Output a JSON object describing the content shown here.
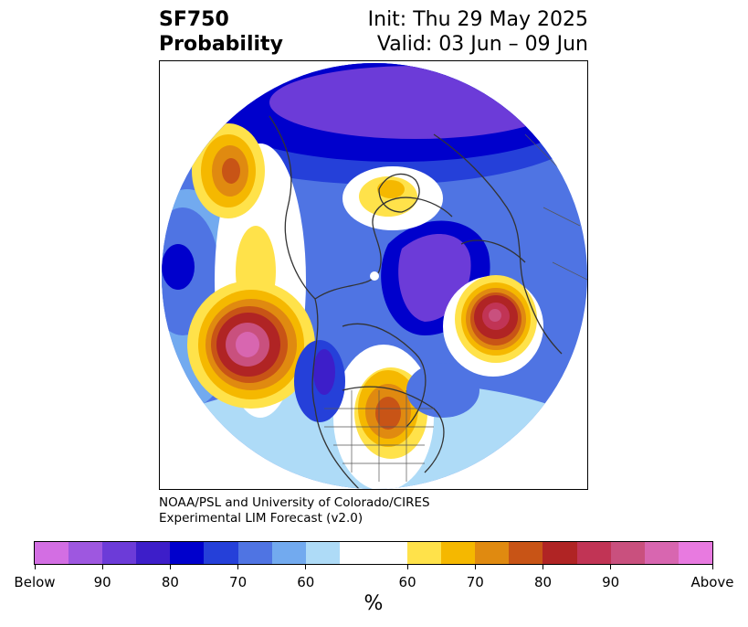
{
  "title": {
    "variable": "SF750",
    "product": "Probability",
    "init": "Init: Thu 29 May 2025",
    "valid": "Valid: 03 Jun – 09 Jun"
  },
  "credit": {
    "line1": "NOAA/PSL and University of Colorado/CIRES",
    "line2": "Experimental LIM Forecast (v2.0)"
  },
  "colorbar": {
    "unit": "%",
    "colors": [
      "#d36ee3",
      "#9e57e0",
      "#6c3bd8",
      "#3d1ec9",
      "#0000cc",
      "#2540d9",
      "#4f74e3",
      "#72aaef",
      "#aedbf7",
      "#ffffff",
      "#ffe24a",
      "#f5b800",
      "#e08a10",
      "#c85416",
      "#b02424",
      "#c13455",
      "#c9507e",
      "#d866b0",
      "#e87ae0"
    ],
    "labels": [
      "Below",
      "90",
      "80",
      "70",
      "60",
      "60",
      "70",
      "80",
      "90",
      "Above"
    ]
  },
  "map": {
    "projection": "north-polar-stereographic",
    "palette": {
      "below_deep": "#6c3bd8",
      "below_strong": "#0000cc",
      "below_mod": "#2540d9",
      "below_light": "#4f74e3",
      "below_pale": "#72aaef",
      "below_faint": "#aedbf7",
      "above_faint": "#ffe24a",
      "above_light": "#f5b800",
      "above_mod": "#e08a10",
      "above_strong": "#c85416",
      "above_deep": "#b02424",
      "above_max": "#c9507e"
    }
  }
}
